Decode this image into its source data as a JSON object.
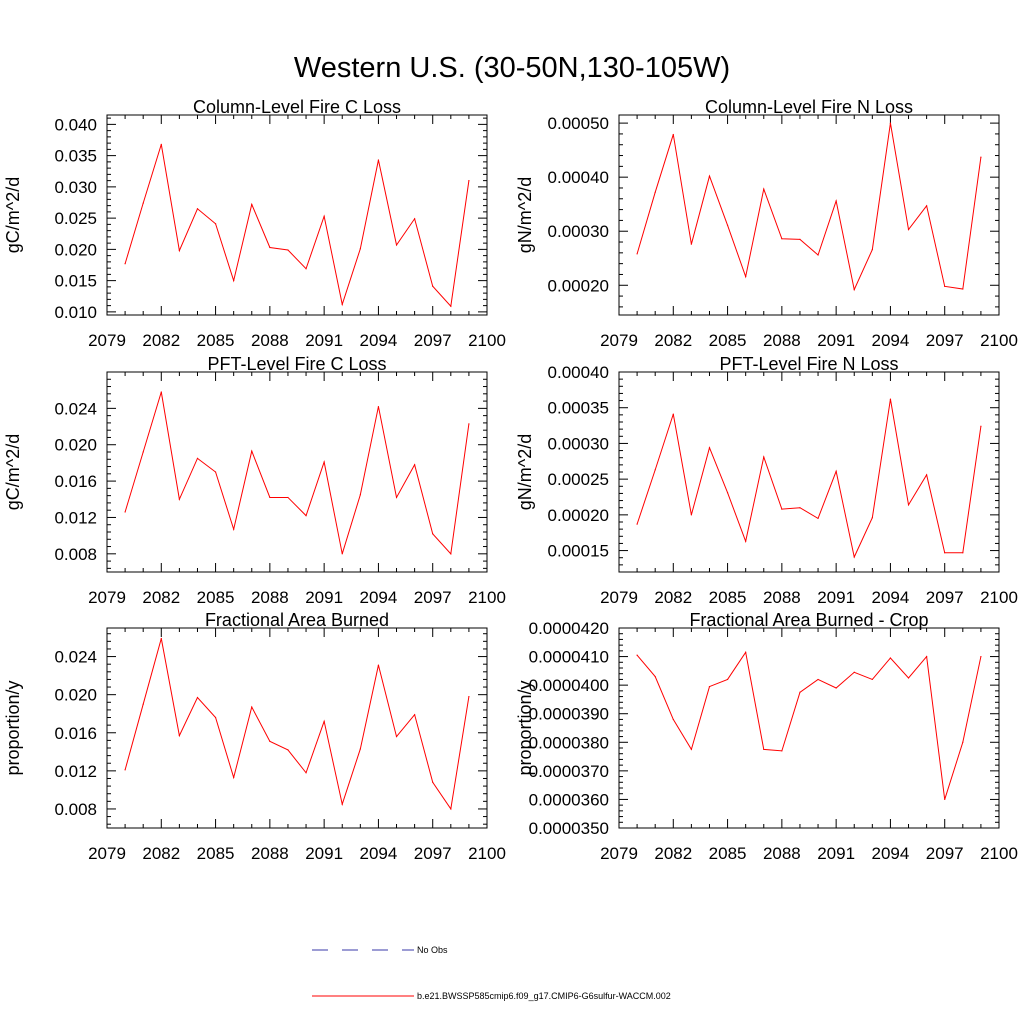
{
  "figure_title": "Western U.S. (30-50N,130-105W)",
  "legend": [
    {
      "label": "No Obs",
      "color": "#3a3aa8",
      "style": "dashed"
    },
    {
      "label": "b.e21.BWSSP585cmip6.f09_g17.CMIP6-G6sulfur-WACCM.002",
      "color": "#ff0000",
      "style": "solid"
    }
  ],
  "chart_data": [
    {
      "type": "line",
      "title": "Column-Level Fire C Loss",
      "ylabel": "gC/m^2/d",
      "xlim": [
        2079,
        2100
      ],
      "ylim": [
        0.0095,
        0.0415
      ],
      "xticks": [
        2079,
        2082,
        2085,
        2088,
        2091,
        2094,
        2097,
        2100
      ],
      "yticks": [
        0.01,
        0.015,
        0.02,
        0.025,
        0.03,
        0.035,
        0.04
      ],
      "ytick_labels": [
        "0.010",
        "0.015",
        "0.020",
        "0.025",
        "0.030",
        "0.035",
        "0.040"
      ],
      "x": [
        2080,
        2081,
        2082,
        2083,
        2084,
        2085,
        2086,
        2087,
        2088,
        2089,
        2090,
        2091,
        2092,
        2093,
        2094,
        2095,
        2096,
        2097,
        2098,
        2099
      ],
      "series": [
        {
          "color": "#ff0000",
          "values": [
            0.0177,
            0.0274,
            0.0368,
            0.0198,
            0.0265,
            0.0241,
            0.015,
            0.0272,
            0.0203,
            0.0199,
            0.0169,
            0.0253,
            0.0112,
            0.0201,
            0.0343,
            0.0207,
            0.0249,
            0.0141,
            0.0109,
            0.031
          ]
        }
      ]
    },
    {
      "type": "line",
      "title": "Column-Level Fire N Loss",
      "ylabel": "gN/m^2/d",
      "xlim": [
        2079,
        2100
      ],
      "ylim": [
        0.000145,
        0.000515
      ],
      "xticks": [
        2079,
        2082,
        2085,
        2088,
        2091,
        2094,
        2097,
        2100
      ],
      "yticks": [
        0.0002,
        0.0003,
        0.0004,
        0.0005
      ],
      "ytick_labels": [
        "0.00020",
        "0.00030",
        "0.00040",
        "0.00050"
      ],
      "x": [
        2080,
        2081,
        2082,
        2083,
        2084,
        2085,
        2086,
        2087,
        2088,
        2089,
        2090,
        2091,
        2092,
        2093,
        2094,
        2095,
        2096,
        2097,
        2098,
        2099
      ],
      "series": [
        {
          "color": "#ff0000",
          "values": [
            0.000258,
            0.000372,
            0.000479,
            0.000276,
            0.000402,
            0.000311,
            0.000216,
            0.000378,
            0.000286,
            0.000285,
            0.000256,
            0.000356,
            0.000192,
            0.000266,
            0.0005,
            0.000303,
            0.000347,
            0.000198,
            0.000193,
            0.000437
          ]
        }
      ]
    },
    {
      "type": "line",
      "title": "PFT-Level Fire C Loss",
      "ylabel": "gC/m^2/d",
      "xlim": [
        2079,
        2100
      ],
      "ylim": [
        0.006,
        0.028
      ],
      "xticks": [
        2079,
        2082,
        2085,
        2088,
        2091,
        2094,
        2097,
        2100
      ],
      "yticks": [
        0.008,
        0.012,
        0.016,
        0.02,
        0.024
      ],
      "ytick_labels": [
        "0.008",
        "0.012",
        "0.016",
        "0.020",
        "0.024"
      ],
      "x": [
        2080,
        2081,
        2082,
        2083,
        2084,
        2085,
        2086,
        2087,
        2088,
        2089,
        2090,
        2091,
        2092,
        2093,
        2094,
        2095,
        2096,
        2097,
        2098,
        2099
      ],
      "series": [
        {
          "color": "#ff0000",
          "values": [
            0.0126,
            0.0192,
            0.0258,
            0.014,
            0.0185,
            0.017,
            0.0107,
            0.0193,
            0.0142,
            0.0142,
            0.0122,
            0.0181,
            0.008,
            0.0145,
            0.0242,
            0.0142,
            0.0178,
            0.0102,
            0.008,
            0.0223
          ]
        }
      ]
    },
    {
      "type": "line",
      "title": "PFT-Level Fire N Loss",
      "ylabel": "gN/m^2/d",
      "xlim": [
        2079,
        2100
      ],
      "ylim": [
        0.00012,
        0.0004
      ],
      "xticks": [
        2079,
        2082,
        2085,
        2088,
        2091,
        2094,
        2097,
        2100
      ],
      "yticks": [
        0.00015,
        0.0002,
        0.00025,
        0.0003,
        0.00035,
        0.0004
      ],
      "ytick_labels": [
        "0.00015",
        "0.00020",
        "0.00025",
        "0.00030",
        "0.00035",
        "0.00040"
      ],
      "x": [
        2080,
        2081,
        2082,
        2083,
        2084,
        2085,
        2086,
        2087,
        2088,
        2089,
        2090,
        2091,
        2092,
        2093,
        2094,
        2095,
        2096,
        2097,
        2098,
        2099
      ],
      "series": [
        {
          "color": "#ff0000",
          "values": [
            0.000187,
            0.000263,
            0.000341,
            0.0002,
            0.000294,
            0.000231,
            0.000163,
            0.000281,
            0.000208,
            0.00021,
            0.000195,
            0.000261,
            0.000141,
            0.000196,
            0.000362,
            0.000214,
            0.000256,
            0.000147,
            0.000147,
            0.000324
          ]
        }
      ]
    },
    {
      "type": "line",
      "title": "Fractional Area Burned",
      "ylabel": "proportion/y",
      "xlim": [
        2079,
        2100
      ],
      "ylim": [
        0.006,
        0.027
      ],
      "xticks": [
        2079,
        2082,
        2085,
        2088,
        2091,
        2094,
        2097,
        2100
      ],
      "yticks": [
        0.008,
        0.012,
        0.016,
        0.02,
        0.024
      ],
      "ytick_labels": [
        "0.008",
        "0.012",
        "0.016",
        "0.020",
        "0.024"
      ],
      "x": [
        2080,
        2081,
        2082,
        2083,
        2084,
        2085,
        2086,
        2087,
        2088,
        2089,
        2090,
        2091,
        2092,
        2093,
        2094,
        2095,
        2096,
        2097,
        2098,
        2099
      ],
      "series": [
        {
          "color": "#ff0000",
          "values": [
            0.0121,
            0.019,
            0.0259,
            0.0157,
            0.0197,
            0.0176,
            0.0113,
            0.0187,
            0.0151,
            0.0142,
            0.0118,
            0.0172,
            0.0085,
            0.0143,
            0.0231,
            0.0156,
            0.0179,
            0.0108,
            0.008,
            0.0198
          ]
        }
      ]
    },
    {
      "type": "line",
      "title": "Fractional Area Burned - Crop",
      "ylabel": "proportion/y",
      "xlim": [
        2079,
        2100
      ],
      "ylim": [
        3.5e-05,
        4.2e-05
      ],
      "xticks": [
        2079,
        2082,
        2085,
        2088,
        2091,
        2094,
        2097,
        2100
      ],
      "yticks": [
        3.5e-05,
        3.6e-05,
        3.7e-05,
        3.8e-05,
        3.9e-05,
        4e-05,
        4.1e-05,
        4.2e-05
      ],
      "ytick_labels": [
        "0.0000350",
        "0.0000360",
        "0.0000370",
        "0.0000380",
        "0.0000390",
        "0.0000400",
        "0.0000410",
        "0.0000420"
      ],
      "x": [
        2080,
        2081,
        2082,
        2083,
        2084,
        2085,
        2086,
        2087,
        2088,
        2089,
        2090,
        2091,
        2092,
        2093,
        2094,
        2095,
        2096,
        2097,
        2098,
        2099
      ],
      "series": [
        {
          "color": "#ff0000",
          "values": [
            4.105e-05,
            4.03e-05,
            3.88e-05,
            3.775e-05,
            3.995e-05,
            4.02e-05,
            4.115e-05,
            3.775e-05,
            3.77e-05,
            3.975e-05,
            4.02e-05,
            3.99e-05,
            4.045e-05,
            4.02e-05,
            4.095e-05,
            4.025e-05,
            4.1e-05,
            3.6e-05,
            3.8e-05,
            4.1e-05
          ]
        }
      ]
    }
  ]
}
